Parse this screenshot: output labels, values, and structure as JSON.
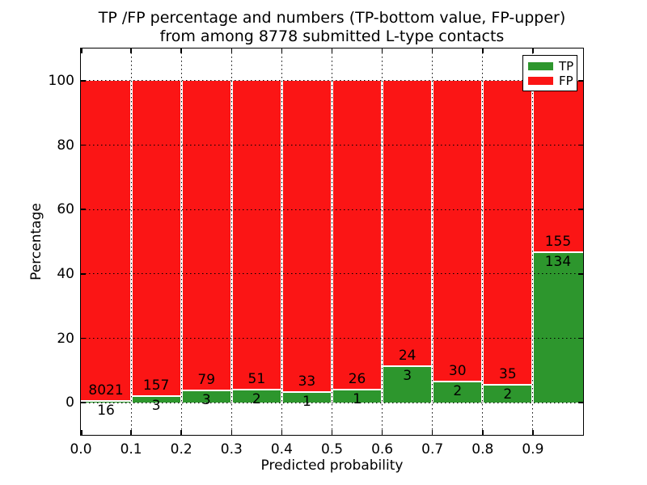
{
  "chart_data": {
    "type": "bar",
    "stacked": true,
    "title_lines": [
      "TP /FP percentage and numbers (TP-bottom value, FP-upper)",
      "from among 8778 submitted L-type contacts"
    ],
    "xlabel": "Predicted probability",
    "ylabel": "Percentage",
    "xlim": [
      0.0,
      1.0
    ],
    "ylim": [
      -10,
      110
    ],
    "x_tick_labels": [
      "0.0",
      "0.1",
      "0.2",
      "0.3",
      "0.4",
      "0.5",
      "0.6",
      "0.7",
      "0.8",
      "0.9"
    ],
    "y_tick_values": [
      0,
      20,
      40,
      60,
      80,
      100
    ],
    "grid": "dotted",
    "colors": {
      "tp": "#2d962d",
      "fp": "#fb1515"
    },
    "legend": {
      "position": "upper-right",
      "entries": [
        {
          "label": "TP",
          "color": "#2d962d"
        },
        {
          "label": "FP",
          "color": "#fb1515"
        }
      ]
    },
    "bins": [
      {
        "range": "0.0-0.1",
        "tp": 16,
        "fp": 8021
      },
      {
        "range": "0.1-0.2",
        "tp": 3,
        "fp": 157
      },
      {
        "range": "0.2-0.3",
        "tp": 3,
        "fp": 79
      },
      {
        "range": "0.3-0.4",
        "tp": 2,
        "fp": 51
      },
      {
        "range": "0.4-0.5",
        "tp": 1,
        "fp": 33
      },
      {
        "range": "0.5-0.6",
        "tp": 1,
        "fp": 26
      },
      {
        "range": "0.6-0.7",
        "tp": 3,
        "fp": 24
      },
      {
        "range": "0.7-0.8",
        "tp": 2,
        "fp": 30
      },
      {
        "range": "0.8-0.9",
        "tp": 2,
        "fp": 35
      },
      {
        "range": "0.9-1.0",
        "tp": 134,
        "fp": 155
      }
    ]
  }
}
